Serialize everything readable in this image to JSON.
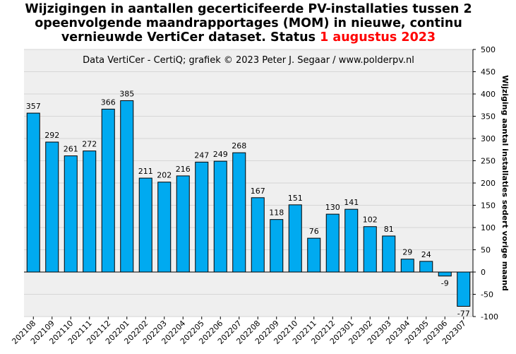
{
  "title": {
    "line1": "Wijzigingen in aantallen gecerticifeerde PV-installaties tussen 2",
    "line2": "opeenvolgende maandrapportages (MOM) in nieuwe, continu",
    "line3_prefix": "vernieuwde VertiCer dataset. Status ",
    "line3_date": "1 augustus 2023"
  },
  "colors": {
    "bar": "#00aaf0",
    "bar_outline": "#000000",
    "plot_bg": "#efefef",
    "grid": "#d6d6d6",
    "date_highlight": "#ff0000"
  },
  "chart_data": {
    "type": "bar",
    "title": "Wijzigingen in aantallen gecerticifeerde PV-installaties tussen 2 opeenvolgende maandrapportages (MOM) in nieuwe, continu vernieuwde VertiCer dataset. Status 1 augustus 2023",
    "subtitle": "Data VertiCer - CertiQ; grafiek © 2023 Peter J. Segaar / www.polderpv.nl",
    "xlabel": "",
    "ylabel": "Wijziging aantal installaties sedert vorige maand",
    "ylim": [
      -100,
      500
    ],
    "yticks": [
      -100,
      -50,
      0,
      50,
      100,
      150,
      200,
      250,
      300,
      350,
      400,
      450,
      500
    ],
    "grid": true,
    "y_axis_position": "right",
    "categories": [
      "202108",
      "202109",
      "202110",
      "202111",
      "202112",
      "202201",
      "202202",
      "202203",
      "202204",
      "202205",
      "202206",
      "202207",
      "202208",
      "202209",
      "202210",
      "202211",
      "202212",
      "202301",
      "202302",
      "202303",
      "202304",
      "202305",
      "202306",
      "202307"
    ],
    "values": [
      357,
      292,
      261,
      272,
      366,
      385,
      211,
      202,
      216,
      247,
      249,
      268,
      167,
      118,
      151,
      76,
      130,
      141,
      102,
      81,
      29,
      24,
      -9,
      -77
    ]
  }
}
